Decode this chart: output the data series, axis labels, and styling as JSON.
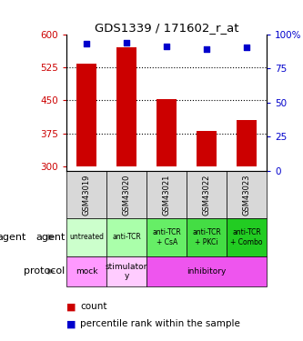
{
  "title": "GDS1339 / 171602_r_at",
  "samples": [
    "GSM43019",
    "GSM43020",
    "GSM43021",
    "GSM43022",
    "GSM43023"
  ],
  "counts": [
    533,
    570,
    452,
    381,
    405
  ],
  "dot_percentile_values": [
    93,
    94,
    91.5,
    89.5,
    90.5
  ],
  "ylim_left": [
    290,
    600
  ],
  "ylim_right": [
    0,
    100
  ],
  "yticks_left": [
    300,
    375,
    450,
    525,
    600
  ],
  "yticks_right": [
    0,
    25,
    50,
    75,
    100
  ],
  "ytick_labels_left": [
    "300",
    "375",
    "450",
    "525",
    "600"
  ],
  "ytick_labels_right": [
    "0",
    "25",
    "50",
    "75",
    "100%"
  ],
  "bar_color": "#cc0000",
  "dot_color": "#0000cc",
  "agent_labels": [
    "untreated",
    "anti-TCR",
    "anti-TCR\n+ CsA",
    "anti-TCR\n+ PKCi",
    "anti-TCR\n+ Combo"
  ],
  "agent_bg_colors": [
    "#ccffcc",
    "#aaffaa",
    "#66ee66",
    "#44dd44",
    "#22cc22"
  ],
  "grid_yticks": [
    375,
    450,
    525
  ],
  "bar_bottom": 300,
  "gsm_bg": "#d8d8d8",
  "proto_mock_color": "#ff99ff",
  "proto_stim_color": "#ffccff",
  "proto_inhib_color": "#ee55ee",
  "legend_bar_color": "#cc0000",
  "legend_dot_color": "#0000cc"
}
